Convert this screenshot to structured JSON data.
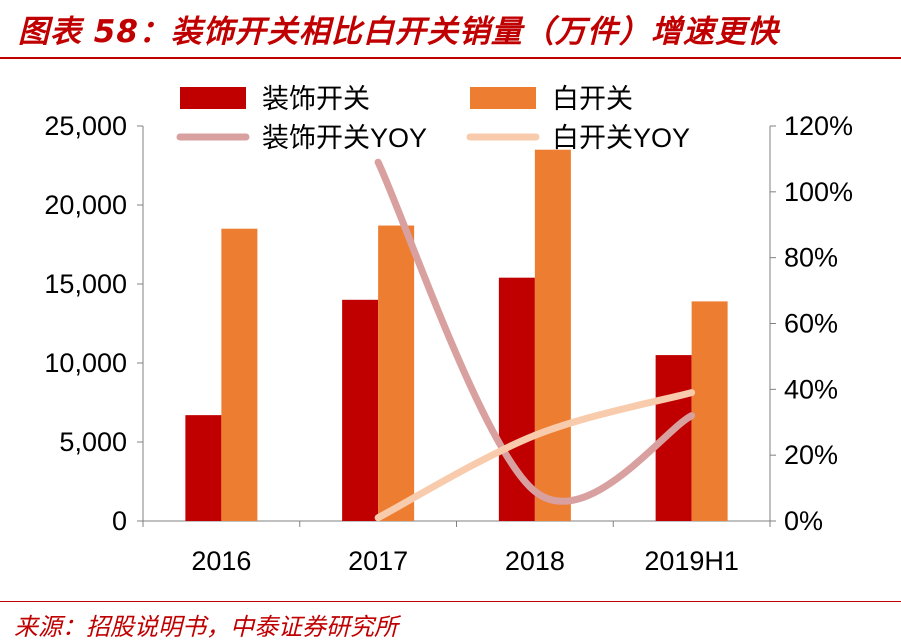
{
  "header": {
    "title": "图表 58：装饰开关相比白开关销量（万件）增速更快"
  },
  "footer": {
    "source": "来源：招股说明书，中泰证券研究所"
  },
  "chart_data": {
    "type": "bar",
    "categories": [
      "2016",
      "2017",
      "2018",
      "2019H1"
    ],
    "series": [
      {
        "name": "装饰开关",
        "type": "bar",
        "axis": "left",
        "color": "#c00000",
        "values": [
          6700,
          14000,
          15400,
          10500
        ]
      },
      {
        "name": "白开关",
        "type": "bar",
        "axis": "left",
        "color": "#ed7d31",
        "values": [
          18500,
          18700,
          23500,
          13900
        ]
      },
      {
        "name": "装饰开关YOY",
        "type": "line",
        "axis": "right",
        "color": "#d9a0a0",
        "values": [
          null,
          1.09,
          0.09,
          0.32
        ]
      },
      {
        "name": "白开关YOY",
        "type": "line",
        "axis": "right",
        "color": "#f8cbad",
        "values": [
          null,
          0.01,
          0.26,
          0.39
        ]
      }
    ],
    "y_left": {
      "min": 0,
      "max": 25000,
      "ticks": [
        "0",
        "5,000",
        "10,000",
        "15,000",
        "20,000",
        "25,000"
      ]
    },
    "y_right": {
      "min": 0,
      "max": 1.2,
      "ticks": [
        "0%",
        "20%",
        "40%",
        "60%",
        "80%",
        "100%",
        "120%"
      ]
    },
    "legend_position": "top",
    "grid": false
  }
}
